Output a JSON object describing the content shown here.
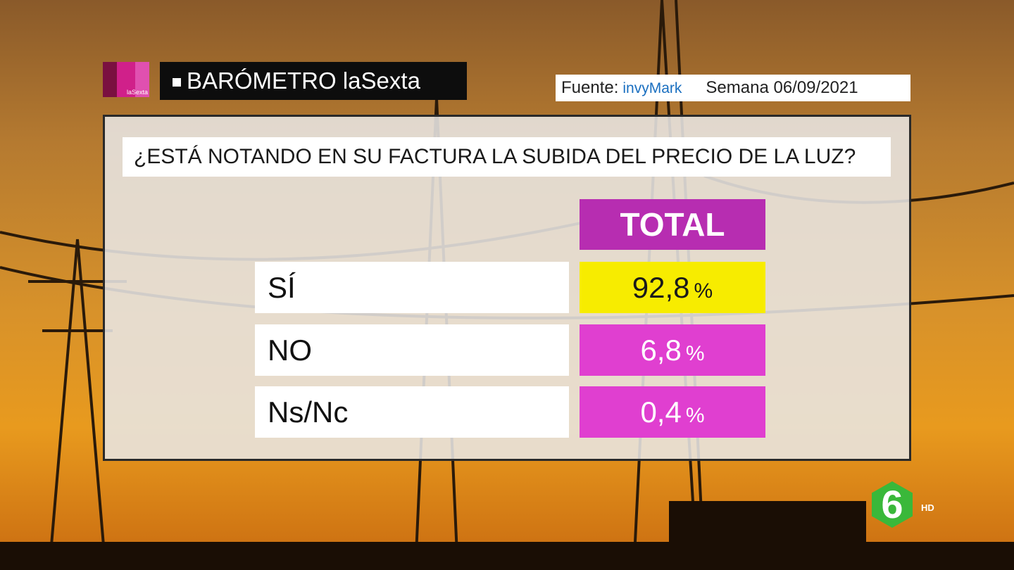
{
  "header": {
    "logo_text": "laSexta",
    "title": "BARÓMETRO laSexta"
  },
  "source": {
    "label": "Fuente:",
    "name": "invyMark",
    "week": "Semana 06/09/2021"
  },
  "question": "¿ESTÁ NOTANDO EN SU FACTURA LA SUBIDA DEL PRECIO DE LA LUZ?",
  "table": {
    "column": "TOTAL",
    "rows": [
      {
        "label": "SÍ",
        "value": "92,8",
        "unit": "%"
      },
      {
        "label": "NO",
        "value": "6,8",
        "unit": "%"
      },
      {
        "label": "Ns/Nc",
        "value": "0,4",
        "unit": "%"
      }
    ]
  },
  "watermark": {
    "channel": "6",
    "quality": "HD"
  }
}
